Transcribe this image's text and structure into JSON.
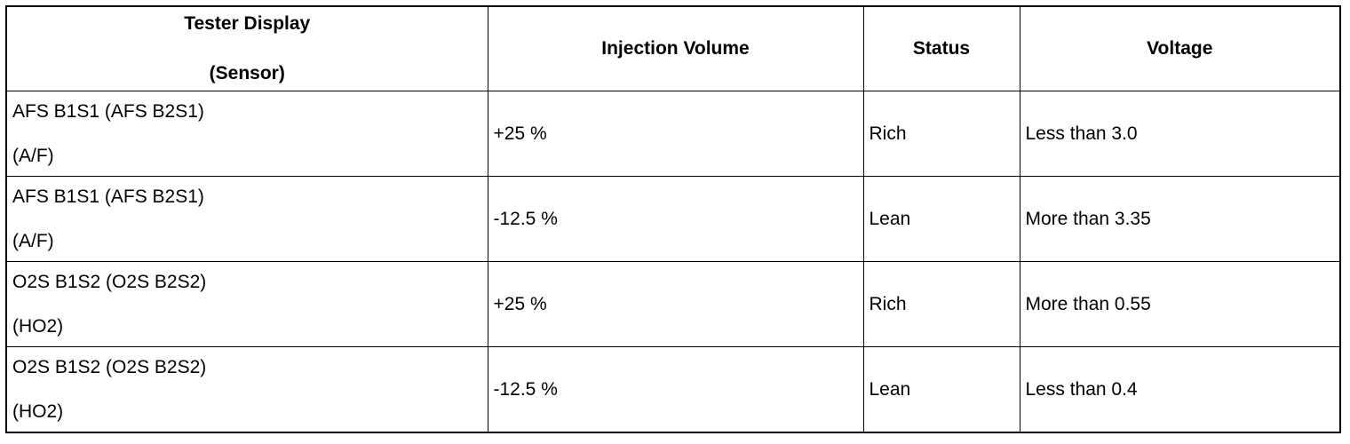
{
  "table": {
    "header": [
      [
        "Tester Display",
        "(Sensor)"
      ],
      [
        "Injection Volume"
      ],
      [
        "Status"
      ],
      [
        "Voltage"
      ]
    ],
    "rows": [
      [
        [
          "AFS B1S1 (AFS B2S1)",
          "(A/F)"
        ],
        "+25 %",
        "Rich",
        "Less than 3.0"
      ],
      [
        [
          "AFS B1S1 (AFS B2S1)",
          "(A/F)"
        ],
        "-12.5 %",
        "Lean",
        "More than 3.35"
      ],
      [
        [
          "O2S B1S2 (O2S B2S2)",
          "(HO2)"
        ],
        "+25 %",
        "Rich",
        "More than 0.55"
      ],
      [
        [
          "O2S B1S2 (O2S B2S2)",
          "(HO2)"
        ],
        "-12.5 %",
        "Lean",
        "Less than 0.4"
      ]
    ]
  }
}
